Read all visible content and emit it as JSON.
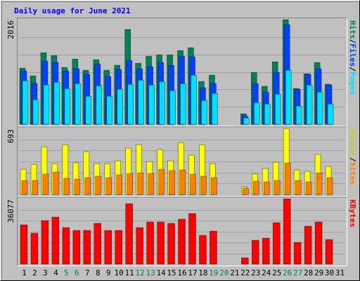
{
  "chart_data": [
    {
      "type": "bar",
      "title": "Daily usage for June 2021",
      "legend_separator": "/",
      "ylim": [
        0,
        2016
      ],
      "yticks": [
        2016
      ],
      "series": [
        {
          "name": "Hits",
          "color": "#00805c",
          "values": [
            1082,
            934,
            1380,
            1326,
            1096,
            1258,
            1042,
            1245,
            1042,
            1137,
            1827,
            1177,
            1312,
            1340,
            1340,
            1421,
            1475,
            825,
            947,
            0,
            0,
            203,
            1001,
            731,
            1204,
            2016,
            690,
            974,
            1191,
            771,
            0
          ]
        },
        {
          "name": "Files",
          "color": "#0040ff",
          "values": [
            1028,
            785,
            1218,
            1191,
            1028,
            1069,
            961,
            1164,
            920,
            1055,
            1231,
            1069,
            1109,
            1191,
            1137,
            1312,
            1299,
            704,
            785,
            0,
            0,
            162,
            785,
            622,
            1001,
            1921,
            677,
            961,
            1069,
            758,
            0
          ]
        },
        {
          "name": "Pages",
          "color": "#00e0ff",
          "values": [
            839,
            474,
            758,
            812,
            690,
            785,
            541,
            744,
            541,
            677,
            771,
            852,
            758,
            825,
            649,
            785,
            947,
            460,
            595,
            0,
            0,
            122,
            419,
            392,
            582,
            1042,
            352,
            758,
            622,
            392,
            0
          ]
        }
      ]
    },
    {
      "type": "bar",
      "legend_separator": "/",
      "ylim": [
        0,
        693
      ],
      "yticks": [
        693
      ],
      "series": [
        {
          "name": "Visits",
          "color": "#ffff00",
          "text_color": "#d0d000",
          "values": [
            265,
            317,
            501,
            324,
            523,
            332,
            450,
            324,
            324,
            354,
            486,
            523,
            346,
            472,
            354,
            545,
            413,
            523,
            324,
            0,
            0,
            81,
            214,
            273,
            339,
            693,
            258,
            243,
            420,
            295,
            0
          ]
        },
        {
          "name": "Sites",
          "color": "#ff8000",
          "values": [
            147,
            147,
            214,
            236,
            170,
            162,
            177,
            192,
            177,
            206,
            221,
            228,
            221,
            265,
            251,
            258,
            214,
            192,
            177,
            0,
            0,
            66,
            140,
            133,
            147,
            332,
            147,
            133,
            228,
            177,
            0
          ]
        }
      ]
    },
    {
      "type": "bar",
      "ylim": [
        0,
        36077
      ],
      "yticks": [
        36077
      ],
      "categories": [
        "1",
        "2",
        "3",
        "4",
        "5",
        "6",
        "7",
        "8",
        "9",
        "10",
        "11",
        "12",
        "13",
        "14",
        "15",
        "16",
        "17",
        "18",
        "19",
        "20",
        "21",
        "22",
        "23",
        "24",
        "25",
        "26",
        "27",
        "28",
        "29",
        "30",
        "31"
      ],
      "category_colors": [
        "#000000",
        "#000000",
        "#000000",
        "#000000",
        "#00805c",
        "#00805c",
        "#000000",
        "#000000",
        "#000000",
        "#000000",
        "#000000",
        "#00805c",
        "#00805c",
        "#000000",
        "#000000",
        "#000000",
        "#000000",
        "#000000",
        "#00805c",
        "#00805c",
        "#000000",
        "#000000",
        "#000000",
        "#000000",
        "#000000",
        "#00805c",
        "#00805c",
        "#000000",
        "#000000",
        "#000000",
        "#000000"
      ],
      "series": [
        {
          "name": "KBytes",
          "color": "#ff0000",
          "values": [
            21728,
            17072,
            24056,
            25996,
            20176,
            18624,
            18624,
            22504,
            18624,
            18624,
            33368,
            20176,
            23280,
            23280,
            22504,
            24832,
            27936,
            15908,
            18236,
            0,
            0,
            3492,
            13192,
            14356,
            22892,
            36077,
            12028,
            20952,
            23280,
            13580,
            0
          ]
        }
      ]
    }
  ]
}
